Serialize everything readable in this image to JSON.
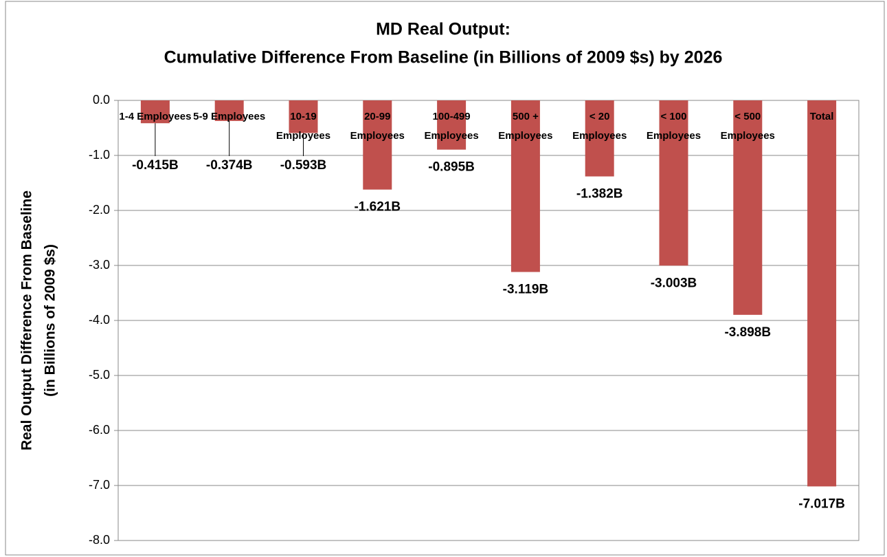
{
  "chart_data": {
    "type": "bar",
    "title": [
      "MD Real Output:",
      "Cumulative Difference From Baseline (in Billions of 2009 $s) by 2026"
    ],
    "ylabel": [
      "Real Output Difference From Baseline",
      "(in Billions of 2009 $s)"
    ],
    "categories": [
      "1-4 Employees",
      "5-9 Employees",
      "10-19 Employees",
      "20-99 Employees",
      "100-499 Employees",
      "500 + Employees",
      "< 20 Employees",
      "< 100 Employees",
      "< 500 Employees",
      "Total"
    ],
    "values": [
      -0.415,
      -0.374,
      -0.593,
      -1.621,
      -0.895,
      -3.119,
      -1.382,
      -3.003,
      -3.898,
      -7.017
    ],
    "value_labels": [
      "-0.415B",
      "-0.374B",
      "-0.593B",
      "-1.621B",
      "-0.895B",
      "-3.119B",
      "-1.382B",
      "-3.003B",
      "-3.898B",
      "-7.017B"
    ],
    "color": "#c0504d",
    "ylim": [
      -8,
      0
    ],
    "yticks": [
      {
        "value": 0,
        "label": "0.0"
      },
      {
        "value": -1,
        "label": "-1.0"
      },
      {
        "value": -2,
        "label": "-2.0"
      },
      {
        "value": -3,
        "label": "-3.0"
      },
      {
        "value": -4,
        "label": "-4.0"
      },
      {
        "value": -5,
        "label": "-5.0"
      },
      {
        "value": -6,
        "label": "-6.0"
      },
      {
        "value": -7,
        "label": "-7.0"
      },
      {
        "value": -8,
        "label": "-8.0"
      }
    ],
    "grid": true
  }
}
